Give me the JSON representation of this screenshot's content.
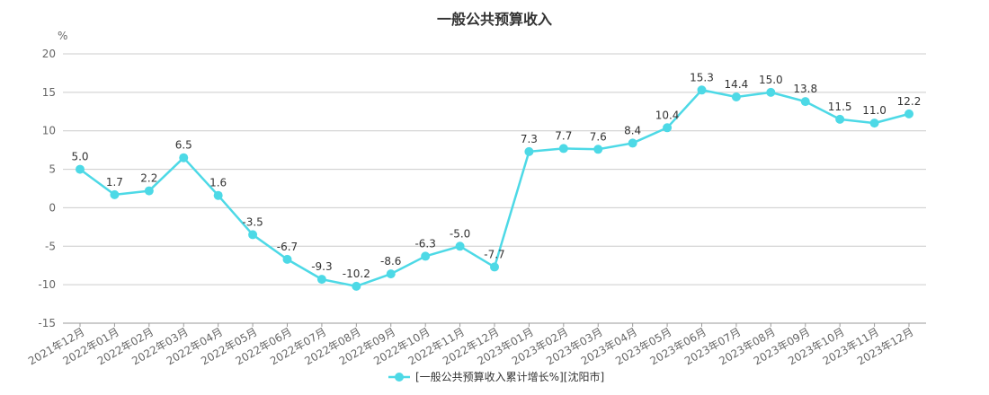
{
  "chart_data": {
    "type": "line",
    "title": "一般公共预算收入",
    "y_unit": "%",
    "ylim": [
      -15,
      20
    ],
    "yticks": [
      -15,
      -10,
      -5,
      0,
      5,
      10,
      15,
      20
    ],
    "grid": true,
    "legend_position": "bottom-center",
    "categories": [
      "2021年12月",
      "2022年01月",
      "2022年02月",
      "2022年03月",
      "2022年04月",
      "2022年05月",
      "2022年06月",
      "2022年07月",
      "2022年08月",
      "2022年09月",
      "2022年10月",
      "2022年11月",
      "2022年12月",
      "2023年01月",
      "2023年02月",
      "2023年03月",
      "2023年04月",
      "2023年05月",
      "2023年06月",
      "2023年07月",
      "2023年08月",
      "2023年09月",
      "2023年10月",
      "2023年11月",
      "2023年12月"
    ],
    "series": [
      {
        "name": "[一般公共预算收入累计增长%][沈阳市]",
        "color": "#4dd9e6",
        "values": [
          5.0,
          1.7,
          2.2,
          6.5,
          1.6,
          -3.5,
          -6.7,
          -9.3,
          -10.2,
          -8.6,
          -6.3,
          -5.0,
          -7.7,
          7.3,
          7.7,
          7.6,
          8.4,
          10.4,
          15.3,
          14.4,
          15.0,
          13.8,
          11.5,
          11.0,
          12.2
        ]
      }
    ]
  }
}
